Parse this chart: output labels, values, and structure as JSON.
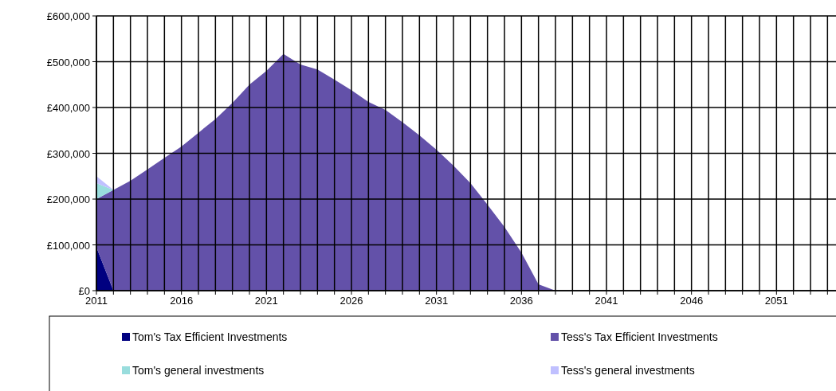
{
  "chart_data": {
    "type": "area",
    "stacked": true,
    "x": [
      2011,
      2012,
      2013,
      2014,
      2015,
      2016,
      2017,
      2018,
      2019,
      2020,
      2021,
      2022,
      2023,
      2024,
      2025,
      2026,
      2027,
      2028,
      2029,
      2030,
      2031,
      2032,
      2033,
      2034,
      2035,
      2036,
      2037,
      2038
    ],
    "series": [
      {
        "name": "Tom's Tax Efficient Investments",
        "color": "#000080",
        "values": [
          95000,
          0,
          0,
          0,
          0,
          0,
          0,
          0,
          0,
          0,
          0,
          0,
          0,
          0,
          0,
          0,
          0,
          0,
          0,
          0,
          0,
          0,
          0,
          0,
          0,
          0,
          0,
          0
        ]
      },
      {
        "name": "Tess's Tax Efficient Investments",
        "color": "#6351a9",
        "values": [
          105000,
          220000,
          240000,
          265000,
          290000,
          315000,
          345000,
          375000,
          410000,
          450000,
          480000,
          517000,
          494000,
          483000,
          461000,
          438000,
          412000,
          395000,
          368000,
          339000,
          308000,
          273000,
          235000,
          188000,
          139000,
          83000,
          14000,
          0
        ]
      },
      {
        "name": "Tom's general investments",
        "color": "#99dddd",
        "values": [
          35000,
          0,
          null,
          null,
          null,
          null,
          null,
          null,
          null,
          null,
          null,
          null,
          null,
          null,
          null,
          null,
          null,
          null,
          null,
          null,
          null,
          null,
          null,
          null,
          null,
          null,
          null,
          null
        ]
      },
      {
        "name": "Tess's general investments",
        "color": "#c0c0ff",
        "values": [
          15000,
          0,
          null,
          null,
          null,
          null,
          null,
          null,
          null,
          null,
          null,
          null,
          null,
          null,
          null,
          null,
          null,
          null,
          null,
          null,
          null,
          null,
          null,
          null,
          null,
          null,
          null,
          null
        ]
      }
    ],
    "xlim": [
      2011,
      2054.5
    ],
    "xticks": [
      2011,
      {
        "value": 2012,
        "label": null
      },
      {
        "value": 2013,
        "label": null
      },
      {
        "value": 2014,
        "label": null
      },
      {
        "value": 2015,
        "label": null
      },
      2016,
      {
        "value": 2017,
        "label": null
      },
      {
        "value": 2018,
        "label": null
      },
      {
        "value": 2019,
        "label": null
      },
      {
        "value": 2020,
        "label": null
      },
      2021,
      {
        "value": 2022,
        "label": null
      },
      {
        "value": 2023,
        "label": null
      },
      {
        "value": 2024,
        "label": null
      },
      {
        "value": 2025,
        "label": null
      },
      2026,
      {
        "value": 2027,
        "label": null
      },
      {
        "value": 2028,
        "label": null
      },
      {
        "value": 2029,
        "label": null
      },
      {
        "value": 2030,
        "label": null
      },
      2031,
      {
        "value": 2032,
        "label": null
      },
      {
        "value": 2033,
        "label": null
      },
      {
        "value": 2034,
        "label": null
      },
      {
        "value": 2035,
        "label": null
      },
      2036,
      {
        "value": 2037,
        "label": null
      },
      {
        "value": 2038,
        "label": null
      },
      {
        "value": 2039,
        "label": null
      },
      {
        "value": 2040,
        "label": null
      },
      2041,
      {
        "value": 2042,
        "label": null
      },
      {
        "value": 2043,
        "label": null
      },
      {
        "value": 2044,
        "label": null
      },
      {
        "value": 2045,
        "label": null
      },
      2046,
      {
        "value": 2047,
        "label": null
      },
      {
        "value": 2048,
        "label": null
      },
      {
        "value": 2049,
        "label": null
      },
      {
        "value": 2050,
        "label": null
      },
      2051,
      {
        "value": 2052,
        "label": null
      },
      {
        "value": 2053,
        "label": null
      },
      {
        "value": 2054,
        "label": null
      }
    ],
    "ylim": [
      0,
      600000
    ],
    "yticks": [
      {
        "value": 0,
        "label": "£0"
      },
      {
        "value": 100000,
        "label": "£100,000"
      },
      {
        "value": 200000,
        "label": "£200,000"
      },
      {
        "value": 300000,
        "label": "£300,000"
      },
      {
        "value": 400000,
        "label": "£400,000"
      },
      {
        "value": 500000,
        "label": "£500,000"
      },
      {
        "value": 600000,
        "label": "£600,000"
      }
    ],
    "grid": true,
    "legend": "bottom"
  }
}
